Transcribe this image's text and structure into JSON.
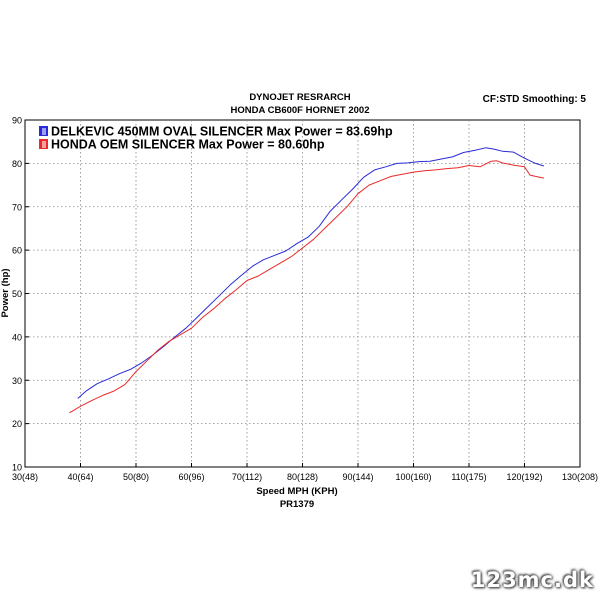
{
  "header": {
    "title_line1": "DYNOJET RESRARCH",
    "title_line2": "HONDA CB600F HORNET 2002",
    "settings": "CF:STD Smoothing: 5"
  },
  "footer": {
    "run_id": "PR1379"
  },
  "watermark": "123mc.dk",
  "chart_data": {
    "type": "line",
    "title": "DYNOJET RESRARCH HONDA CB600F HORNET 2002",
    "xlabel": "Speed MPH (KPH)",
    "ylabel": "Power (hp)",
    "xlim": [
      30,
      130
    ],
    "ylim": [
      10,
      90
    ],
    "grid": true,
    "legend_placement": "top-left",
    "x_ticks": [
      30,
      40,
      50,
      60,
      70,
      80,
      90,
      100,
      110,
      120,
      130
    ],
    "x_tick_labels": [
      "30(48)",
      "40(64)",
      "50(80)",
      "60(96)",
      "70(112)",
      "80(128)",
      "90(144)",
      "100(160)",
      "110(175)",
      "120(192)",
      "130(208)"
    ],
    "y_ticks": [
      10,
      20,
      30,
      40,
      50,
      60,
      70,
      80,
      90
    ],
    "y_tick_labels": [
      "10",
      "20",
      "30",
      "40",
      "50",
      "60",
      "70",
      "80",
      "90"
    ],
    "series": [
      {
        "name": "DELKEVIC 450MM OVAL SILENCER Max Power  = 83.69hp",
        "color": "#2a2ad8",
        "x": [
          39.5,
          41,
          43,
          45,
          47,
          49,
          51,
          53,
          55,
          57,
          59,
          61,
          63,
          65,
          67,
          69,
          71,
          73,
          75,
          77,
          79,
          81,
          83,
          85,
          87,
          89,
          91,
          93,
          95,
          97,
          99,
          101,
          103,
          105,
          107,
          109,
          111,
          113,
          114.5,
          116,
          118,
          120,
          122,
          123.5
        ],
        "y": [
          25.8,
          27.5,
          29.2,
          30.3,
          31.5,
          32.5,
          34.0,
          35.8,
          37.8,
          40.0,
          42.0,
          44.5,
          47.0,
          49.5,
          52.0,
          54.2,
          56.3,
          57.8,
          58.8,
          59.8,
          61.5,
          63.0,
          65.5,
          69.0,
          71.5,
          74.0,
          76.8,
          78.5,
          79.2,
          80.0,
          80.1,
          80.4,
          80.5,
          81.0,
          81.5,
          82.5,
          83.0,
          83.6,
          83.3,
          82.8,
          82.6,
          81.2,
          80.0,
          79.4
        ]
      },
      {
        "name": "HONDA OEM SILENCER Max Power = 80.60hp",
        "color": "#ea2a2a",
        "x": [
          38,
          40,
          42,
          44,
          46,
          48,
          50,
          52,
          54,
          56,
          58,
          60,
          62,
          64,
          66,
          68,
          70,
          72,
          74,
          76,
          78,
          80,
          82,
          84,
          86,
          88,
          90,
          92,
          94,
          96,
          98,
          100,
          102,
          104,
          106,
          108,
          110,
          112,
          114,
          115,
          116,
          118,
          120,
          121,
          122,
          123.5
        ],
        "y": [
          22.5,
          24.0,
          25.3,
          26.5,
          27.5,
          29.0,
          32.0,
          34.5,
          37.0,
          39.0,
          40.5,
          42.0,
          44.5,
          46.5,
          48.8,
          50.8,
          53.0,
          54.0,
          55.5,
          57.0,
          58.5,
          60.5,
          62.5,
          65.0,
          67.5,
          70.0,
          73.0,
          75.0,
          76.0,
          77.0,
          77.5,
          78.0,
          78.3,
          78.5,
          78.8,
          79.0,
          79.5,
          79.2,
          80.5,
          80.6,
          80.1,
          79.6,
          79.2,
          77.3,
          77.0,
          76.6
        ]
      }
    ]
  }
}
